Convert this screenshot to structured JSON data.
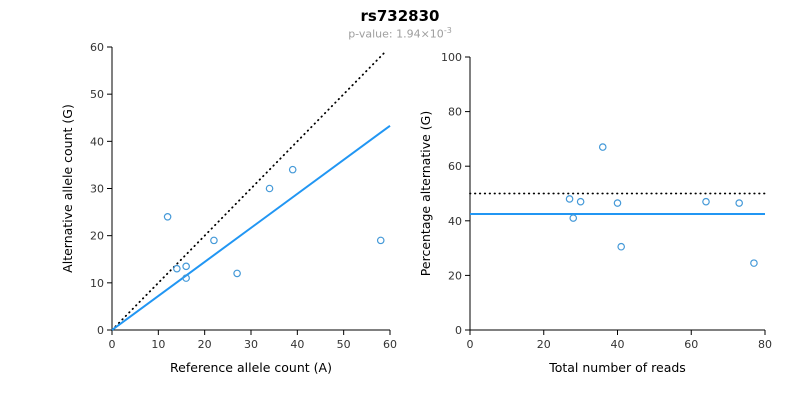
{
  "header": {
    "title": "rs732830",
    "subtitle": "p-value: 1.94×10",
    "subtitle_exponent": "-3"
  },
  "chart_data": [
    {
      "type": "scatter",
      "name": "allele-count-scatter",
      "xlabel": "Reference allele count (A)",
      "ylabel": "Alternative allele count (G)",
      "xlim": [
        0,
        60
      ],
      "ylim": [
        0,
        60
      ],
      "xticks": [
        0,
        10,
        20,
        30,
        40,
        50,
        60
      ],
      "yticks": [
        0,
        10,
        20,
        30,
        40,
        50,
        60
      ],
      "grid": false,
      "legend": "none",
      "point_color": "#4499d8",
      "points": [
        [
          12,
          24
        ],
        [
          14,
          13
        ],
        [
          16,
          13.5
        ],
        [
          16,
          11
        ],
        [
          22,
          19
        ],
        [
          27,
          12
        ],
        [
          34,
          30
        ],
        [
          39,
          34
        ],
        [
          58,
          19
        ]
      ],
      "lines": [
        {
          "name": "identity-expected",
          "style": "dotted",
          "color": "#000000",
          "width": 1.8,
          "x1": 0,
          "y1": 0,
          "x2": 59,
          "y2": 59
        },
        {
          "name": "fitted-ratio",
          "style": "solid",
          "color": "#2196f3",
          "width": 2,
          "x1": 0,
          "y1": 0,
          "x2": 60,
          "y2": 43.3
        }
      ]
    },
    {
      "type": "scatter",
      "name": "percentage-scatter",
      "xlabel": "Total number of reads",
      "ylabel": "Percentage alternative (G)",
      "xlim": [
        0,
        80
      ],
      "ylim": [
        0,
        100
      ],
      "xticks": [
        0,
        20,
        40,
        60,
        80
      ],
      "yticks": [
        0,
        20,
        40,
        60,
        80,
        100
      ],
      "grid": false,
      "legend": "none",
      "point_color": "#4499d8",
      "points": [
        [
          27,
          48
        ],
        [
          28,
          41
        ],
        [
          30,
          47
        ],
        [
          36,
          67
        ],
        [
          40,
          46.5
        ],
        [
          41,
          30.5
        ],
        [
          64,
          47
        ],
        [
          73,
          46.5
        ],
        [
          77,
          24.5
        ]
      ],
      "lines": [
        {
          "name": "expected-50pct",
          "style": "dotted",
          "color": "#000000",
          "width": 1.8,
          "x1": 0,
          "y1": 50,
          "x2": 80,
          "y2": 50
        },
        {
          "name": "mean-percentage",
          "style": "solid",
          "color": "#2196f3",
          "width": 2,
          "x1": 0,
          "y1": 42.5,
          "x2": 80,
          "y2": 42.5
        }
      ]
    }
  ]
}
